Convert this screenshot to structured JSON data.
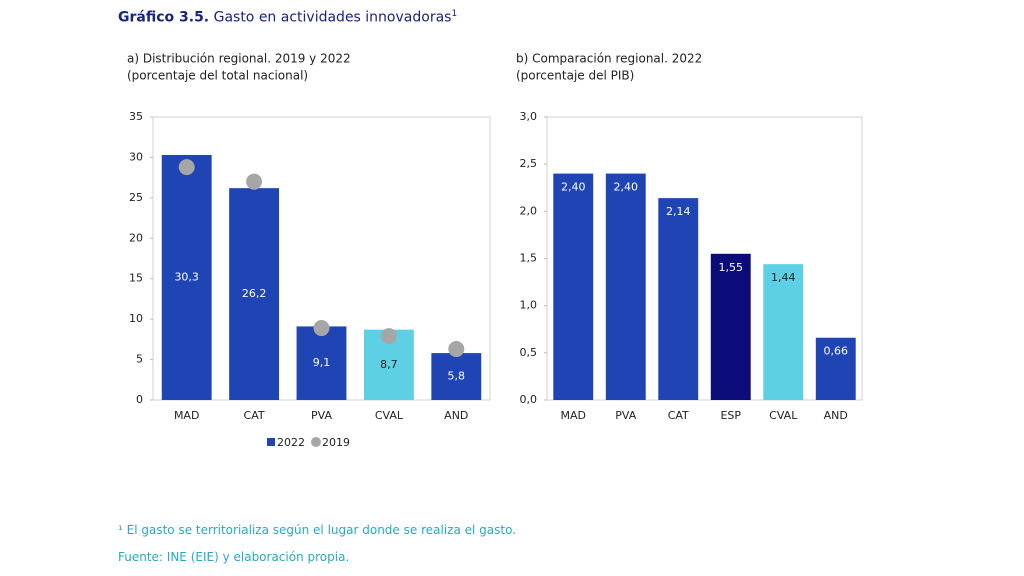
{
  "header": {
    "label": "Gráfico 3.5.",
    "title": "Gasto en actividades innovadoras",
    "title_note": "1"
  },
  "chart_data": [
    {
      "type": "bar",
      "title": "a) Distribución regional. 2019 y 2022",
      "subtitle": "(porcentaje del total nacional)",
      "categories": [
        "MAD",
        "CAT",
        "PVA",
        "CVAL",
        "AND"
      ],
      "series": [
        {
          "name": "2022",
          "type": "bar",
          "color": "#1f45b5",
          "colors": [
            "#1f45b5",
            "#1f45b5",
            "#1f45b5",
            "#5dd0e3",
            "#1f45b5"
          ],
          "values": [
            30.3,
            26.2,
            9.1,
            8.7,
            5.8
          ],
          "value_labels": [
            "30,3",
            "26,2",
            "9,1",
            "8,7",
            "5,8"
          ]
        },
        {
          "name": "2019",
          "type": "scatter",
          "color": "#a6a6a6",
          "values": [
            28.8,
            27.0,
            8.9,
            7.9,
            6.3
          ]
        }
      ],
      "ylim": [
        0,
        35
      ],
      "yticks": [
        0,
        5,
        10,
        15,
        20,
        25,
        30,
        35
      ],
      "legend": "bottom"
    },
    {
      "type": "bar",
      "title": "b) Comparación regional. 2022",
      "subtitle": "(porcentaje del PIB)",
      "categories": [
        "MAD",
        "PVA",
        "CAT",
        "ESP",
        "CVAL",
        "AND"
      ],
      "values": [
        2.4,
        2.4,
        2.14,
        1.55,
        1.44,
        0.66
      ],
      "value_labels": [
        "2,40",
        "2,40",
        "2,14",
        "1,55",
        "1,44",
        "0,66"
      ],
      "colors": [
        "#1f45b5",
        "#1f45b5",
        "#1f45b5",
        "#0b0b7a",
        "#5dd0e3",
        "#1f45b5"
      ],
      "ylim": [
        0,
        3
      ],
      "yticks": [
        {
          "value": 0,
          "label": "0,0"
        },
        {
          "value": 0.5,
          "label": "0,5"
        },
        {
          "value": 1,
          "label": "1,0"
        },
        {
          "value": 1.5,
          "label": "1,5"
        },
        {
          "value": 2,
          "label": "2,0"
        },
        {
          "value": 2.5,
          "label": "2,5"
        },
        {
          "value": 3,
          "label": "3,0"
        }
      ]
    }
  ],
  "footnotes": [
    "¹ El gasto se territorializa según el lugar donde se realiza el gasto.",
    "Fuente: INE (EIE) y elaboración propia."
  ]
}
